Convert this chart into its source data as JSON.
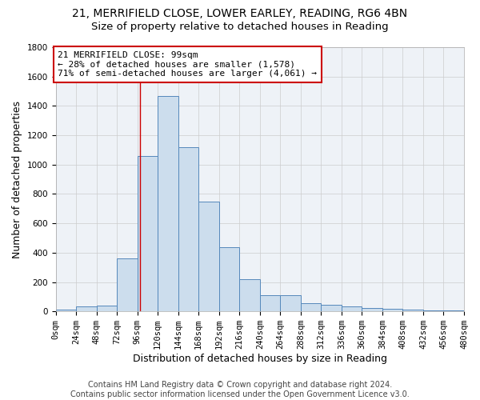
{
  "title_line1": "21, MERRIFIELD CLOSE, LOWER EARLEY, READING, RG6 4BN",
  "title_line2": "Size of property relative to detached houses in Reading",
  "xlabel": "Distribution of detached houses by size in Reading",
  "ylabel": "Number of detached properties",
  "bar_values": [
    10,
    35,
    40,
    360,
    1060,
    1470,
    1120,
    750,
    435,
    220,
    110,
    110,
    55,
    45,
    35,
    25,
    20,
    10,
    5,
    5
  ],
  "bin_edges": [
    0,
    24,
    48,
    72,
    96,
    120,
    144,
    168,
    192,
    216,
    240,
    264,
    288,
    312,
    336,
    360,
    384,
    408,
    432,
    456,
    480
  ],
  "bar_color": "#ccdded",
  "bar_edge_color": "#5588bb",
  "property_size": 99,
  "annotation_line1": "21 MERRIFIELD CLOSE: 99sqm",
  "annotation_line2": "← 28% of detached houses are smaller (1,578)",
  "annotation_line3": "71% of semi-detached houses are larger (4,061) →",
  "annotation_box_color": "#ffffff",
  "annotation_border_color": "#cc0000",
  "vline_color": "#cc0000",
  "vline_x": 99,
  "ylim": [
    0,
    1800
  ],
  "xlim": [
    0,
    480
  ],
  "yticks": [
    0,
    200,
    400,
    600,
    800,
    1000,
    1200,
    1400,
    1600,
    1800
  ],
  "xtick_labels": [
    "0sqm",
    "24sqm",
    "48sqm",
    "72sqm",
    "96sqm",
    "120sqm",
    "144sqm",
    "168sqm",
    "192sqm",
    "216sqm",
    "240sqm",
    "264sqm",
    "288sqm",
    "312sqm",
    "336sqm",
    "360sqm",
    "384sqm",
    "408sqm",
    "432sqm",
    "456sqm",
    "480sqm"
  ],
  "footer_text": "Contains HM Land Registry data © Crown copyright and database right 2024.\nContains public sector information licensed under the Open Government Licence v3.0.",
  "bg_color": "#eef2f7",
  "grid_color": "#cccccc",
  "title_fontsize": 10,
  "subtitle_fontsize": 9.5,
  "axis_label_fontsize": 9,
  "tick_fontsize": 7.5,
  "annotation_fontsize": 8,
  "footer_fontsize": 7
}
